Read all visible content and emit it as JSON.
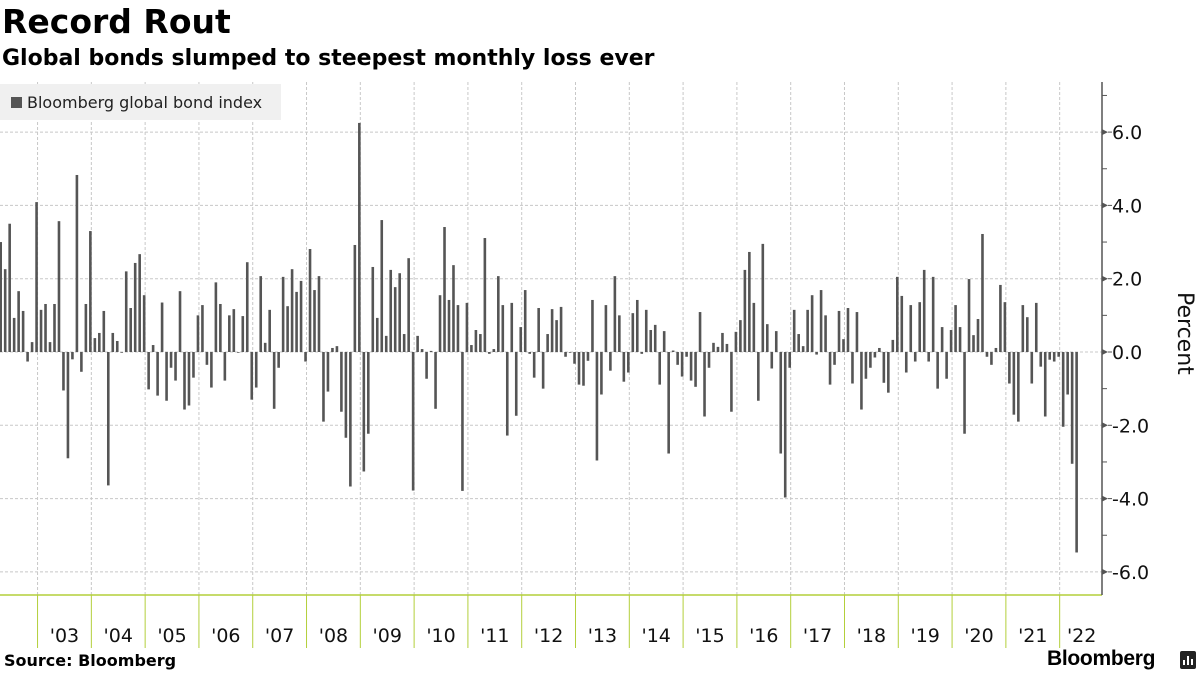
{
  "header": {
    "title": "Record Rout",
    "subtitle": "Global bonds slumped to steepest monthly loss ever"
  },
  "footer": {
    "source": "Source: Bloomberg",
    "brand": "Bloomberg"
  },
  "colors": {
    "bar": "#555555",
    "grid": "#c8c8c8",
    "axis_green": "#b3cf3a",
    "legend_bg": "#f0f0f0"
  },
  "chart_data": {
    "type": "bar",
    "title": "Record Rout",
    "subtitle": "Global bonds slumped to steepest monthly loss ever",
    "xlabel": "",
    "ylabel": "Percent",
    "ylim": [
      -6.6,
      7.3
    ],
    "grid": true,
    "legend": {
      "placement": "top-left",
      "entries": [
        "Bloomberg global bond index"
      ]
    },
    "series_name": "Bloomberg global bond index",
    "frequency": "monthly",
    "start_month": "2002-04",
    "end_month": "2022-04",
    "y_ticks": [
      "6.0",
      "4.0",
      "2.0",
      "0.0",
      "-2.0",
      "-4.0",
      "-6.0"
    ],
    "y_tick_values": [
      6,
      4,
      2,
      0,
      -2,
      -4,
      -6
    ],
    "x_tick_labels": [
      "'03",
      "'04",
      "'05",
      "'06",
      "'07",
      "'08",
      "'09",
      "'10",
      "'11",
      "'12",
      "'13",
      "'14",
      "'15",
      "'16",
      "'17",
      "'18",
      "'19",
      "'20",
      "'21",
      "'22"
    ],
    "x_tick_years": [
      2003,
      2004,
      2005,
      2006,
      2007,
      2008,
      2009,
      2010,
      2011,
      2012,
      2013,
      2014,
      2015,
      2016,
      2017,
      2018,
      2019,
      2020,
      2021,
      2022
    ],
    "values": [
      3.0,
      2.26,
      3.5,
      0.93,
      1.66,
      1.12,
      -0.26,
      0.27,
      4.09,
      1.15,
      1.31,
      0.27,
      1.31,
      3.57,
      -1.05,
      -2.9,
      -0.2,
      4.83,
      -0.54,
      1.31,
      3.3,
      0.38,
      0.52,
      1.12,
      -3.64,
      0.52,
      0.3,
      -0.02,
      2.2,
      1.2,
      2.43,
      2.67,
      1.55,
      -1.02,
      0.19,
      -1.19,
      1.35,
      -1.33,
      -0.43,
      -0.78,
      1.66,
      -1.57,
      -1.46,
      -0.7,
      1.0,
      1.28,
      -0.35,
      -0.97,
      1.9,
      1.31,
      -0.78,
      1.0,
      1.17,
      -0.02,
      0.98,
      2.45,
      -1.3,
      -0.97,
      2.07,
      0.25,
      1.15,
      -1.55,
      -0.43,
      2.05,
      1.25,
      2.26,
      1.64,
      1.94,
      -0.26,
      2.81,
      1.69,
      2.07,
      -1.9,
      -1.08,
      0.11,
      0.16,
      -1.63,
      -2.34,
      -3.67,
      2.92,
      6.25,
      -3.26,
      -2.23,
      2.32,
      0.93,
      3.6,
      0.44,
      2.24,
      1.77,
      2.15,
      0.49,
      2.56,
      -3.78,
      0.44,
      0.08,
      -0.73,
      0.03,
      -1.55,
      1.55,
      3.41,
      1.42,
      2.37,
      1.28,
      -3.79,
      1.34,
      0.19,
      0.6,
      0.49,
      3.11,
      -0.05,
      0.08,
      2.07,
      1.28,
      -2.28,
      1.34,
      -1.74,
      0.68,
      1.69,
      -0.05,
      -0.7,
      1.2,
      -1.0,
      0.49,
      1.17,
      0.87,
      1.23,
      -0.13,
      -0.02,
      -0.32,
      -0.89,
      -0.92,
      -0.24,
      1.42,
      -2.96,
      -1.16,
      1.28,
      -0.51,
      2.07,
      1.0,
      -0.81,
      -0.56,
      1.06,
      1.42,
      -0.05,
      1.15,
      0.6,
      0.74,
      -0.89,
      0.57,
      -2.77,
      0.04,
      -0.35,
      -0.67,
      -0.13,
      -0.78,
      -0.95,
      1.09,
      -1.76,
      -0.43,
      0.25,
      0.14,
      0.52,
      0.22,
      -1.63,
      0.55,
      0.87,
      2.24,
      2.73,
      1.34,
      -1.33,
      2.95,
      0.76,
      -0.45,
      0.57,
      -2.77,
      -3.97,
      -0.43,
      1.15,
      0.49,
      0.16,
      1.15,
      1.55,
      -0.07,
      1.69,
      1.0,
      -0.89,
      -0.35,
      1.12,
      0.35,
      1.2,
      -0.86,
      1.09,
      -1.57,
      -0.73,
      -0.43,
      -0.15,
      0.11,
      -0.84,
      -1.11,
      0.33,
      2.05,
      1.53,
      -0.56,
      1.28,
      -0.26,
      1.36,
      2.24,
      -0.26,
      2.05,
      -1.0,
      0.68,
      -0.73,
      0.6,
      1.28,
      0.68,
      -2.23,
      1.99,
      0.46,
      0.9,
      3.22,
      -0.13,
      -0.35,
      0.11,
      1.83,
      1.36,
      -0.86,
      -1.71,
      -1.9,
      1.28,
      0.95,
      -0.86,
      1.34,
      -0.4,
      -1.76,
      -0.21,
      -0.26,
      -0.13,
      -2.04,
      -1.16,
      -3.05,
      -5.47
    ]
  }
}
